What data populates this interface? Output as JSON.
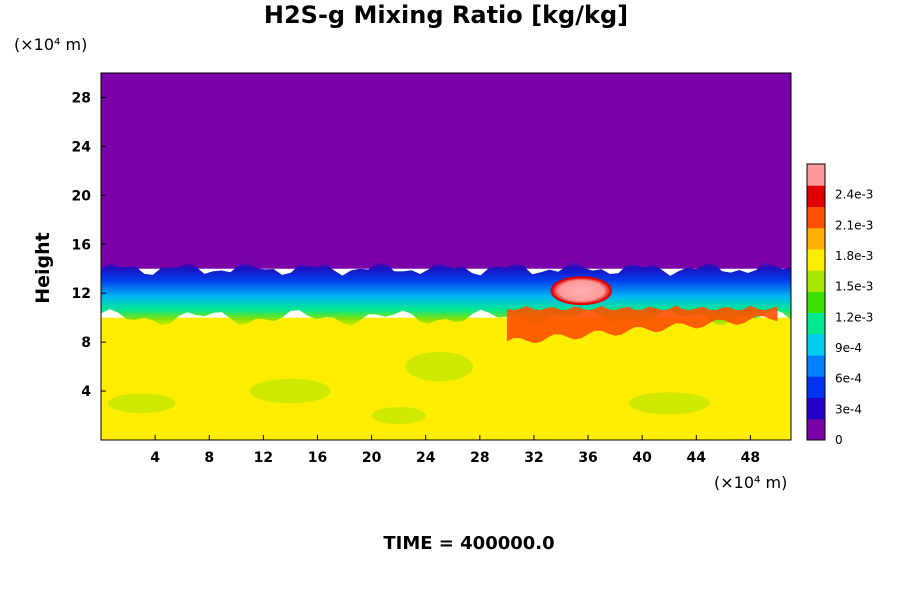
{
  "chart_data": {
    "type": "heatmap",
    "title": "H2S-g Mixing Ratio [kg/kg]",
    "ylabel": "Height",
    "xlabel": "",
    "y_unit": "(×10⁴ m)",
    "x_unit": "(×10⁴ m)",
    "footer": "TIME = 400000.0",
    "xlim": [
      0,
      51
    ],
    "ylim": [
      0,
      30
    ],
    "x_ticks": [
      "4",
      "8",
      "12",
      "16",
      "20",
      "24",
      "28",
      "32",
      "36",
      "40",
      "44",
      "48"
    ],
    "y_ticks": [
      "4",
      "8",
      "12",
      "16",
      "20",
      "24",
      "28"
    ],
    "colorbar": {
      "min": 0,
      "max": 0.0027,
      "tick_labels": [
        "0",
        "3e-4",
        "6e-4",
        "9e-4",
        "1.2e-3",
        "1.5e-3",
        "1.8e-3",
        "2.1e-3",
        "2.4e-3"
      ],
      "colors": [
        "#7a00a8",
        "#2400c8",
        "#0033ee",
        "#0080ff",
        "#00ccee",
        "#00e890",
        "#3ce000",
        "#a8e800",
        "#ffee00",
        "#ffb000",
        "#ff5000",
        "#e00000",
        "#ff9a9a"
      ]
    },
    "regions": {
      "upper_layer_value": 0,
      "lower_layer_value": 0.00185,
      "transition_height_range": [
        10,
        14
      ],
      "high_concentration_band": {
        "x_range": [
          30,
          50
        ],
        "height_range": [
          8,
          11
        ],
        "value": 0.0023
      },
      "peak_blob": {
        "x": 35.5,
        "height": 12.2,
        "value": 0.0026
      }
    }
  }
}
